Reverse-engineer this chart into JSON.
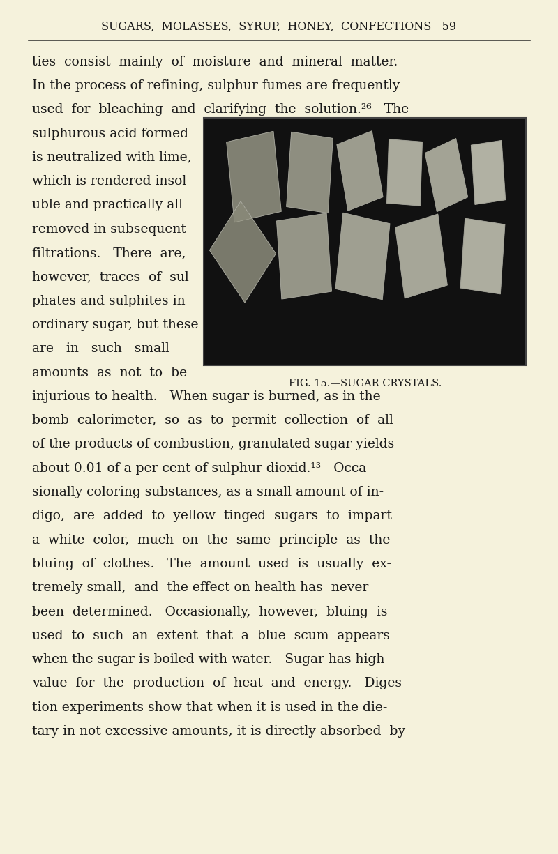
{
  "bg_color": "#f5f2dc",
  "text_color": "#1a1a1a",
  "page_width": 8.0,
  "page_height": 12.25,
  "header_text": "SUGARS,  MOLASSES,  SYRUP,  HONEY,  CONFECTIONS   59",
  "header_fontsize": 11.5,
  "body_fontsize": 13.5,
  "image_caption": "FIG. 15.—SUGAR CRYSTALS.",
  "caption_fontsize": 10.5,
  "full_width_lines": [
    "ties  consist  mainly  of  moisture  and  mineral  matter.",
    "In the process of refining, sulphur fumes are frequently",
    "used  for  bleaching  and  clarifying  the  solution.²⁶   The"
  ],
  "left_col_lines": [
    "sulphurous acid formed",
    "is neutralized with lime,",
    "which is rendered insol-",
    "uble and practically all",
    "removed in subsequent",
    "filtrations.   There  are,",
    "however,  traces  of  sul-",
    "phates and sulphites in",
    "ordinary sugar, but these",
    "are   in   such   small",
    "amounts  as  not  to  be"
  ],
  "full_width_lines2": [
    "injurious to health.   When sugar is burned, as in the",
    "bomb  calorimeter,  so  as  to  permit  collection  of  all",
    "of the products of combustion, granulated sugar yields",
    "about 0.01 of a per cent of sulphur dioxid.¹³   Occa-",
    "sionally coloring substances, as a small amount of in-",
    "digo,  are  added  to  yellow  tinged  sugars  to  impart",
    "a  white  color,  much  on  the  same  principle  as  the",
    "bluing  of  clothes.   The  amount  used  is  usually  ex-",
    "tremely small,  and  the effect on health has  never",
    "been  determined.   Occasionally,  however,  bluing  is",
    "used  to  such  an  extent  that  a  blue  scum  appears",
    "when the sugar is boiled with water.   Sugar has high",
    "value  for  the  production  of  heat  and  energy.   Diges-",
    "tion experiments show that when it is used in the die-",
    "tary in not excessive amounts, it is directly absorbed  by"
  ]
}
